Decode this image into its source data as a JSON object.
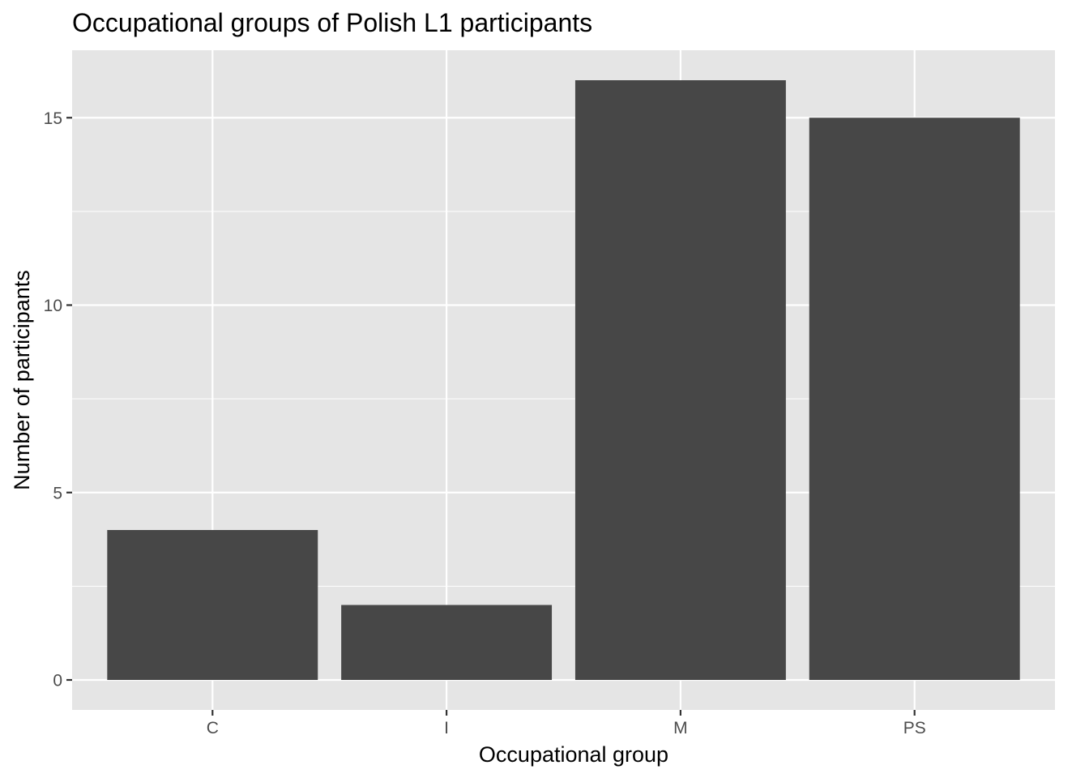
{
  "chart_data": {
    "type": "bar",
    "title": "Occupational groups of Polish L1 participants",
    "xlabel": "Occupational group",
    "ylabel": "Number of participants",
    "categories": [
      "C",
      "I",
      "M",
      "PS"
    ],
    "values": [
      4,
      2,
      16,
      15
    ],
    "ylim": [
      -0.8,
      16.8
    ],
    "yticks": [
      0,
      5,
      10,
      15
    ],
    "ytick_labels": [
      "0",
      "5",
      "10",
      "15"
    ],
    "grid": true,
    "legend": "none",
    "colors": {
      "panel_background": "#e5e5e5",
      "grid_line": "#ffffff",
      "bar_fill": "#474747",
      "tick_mark": "#333333"
    }
  }
}
